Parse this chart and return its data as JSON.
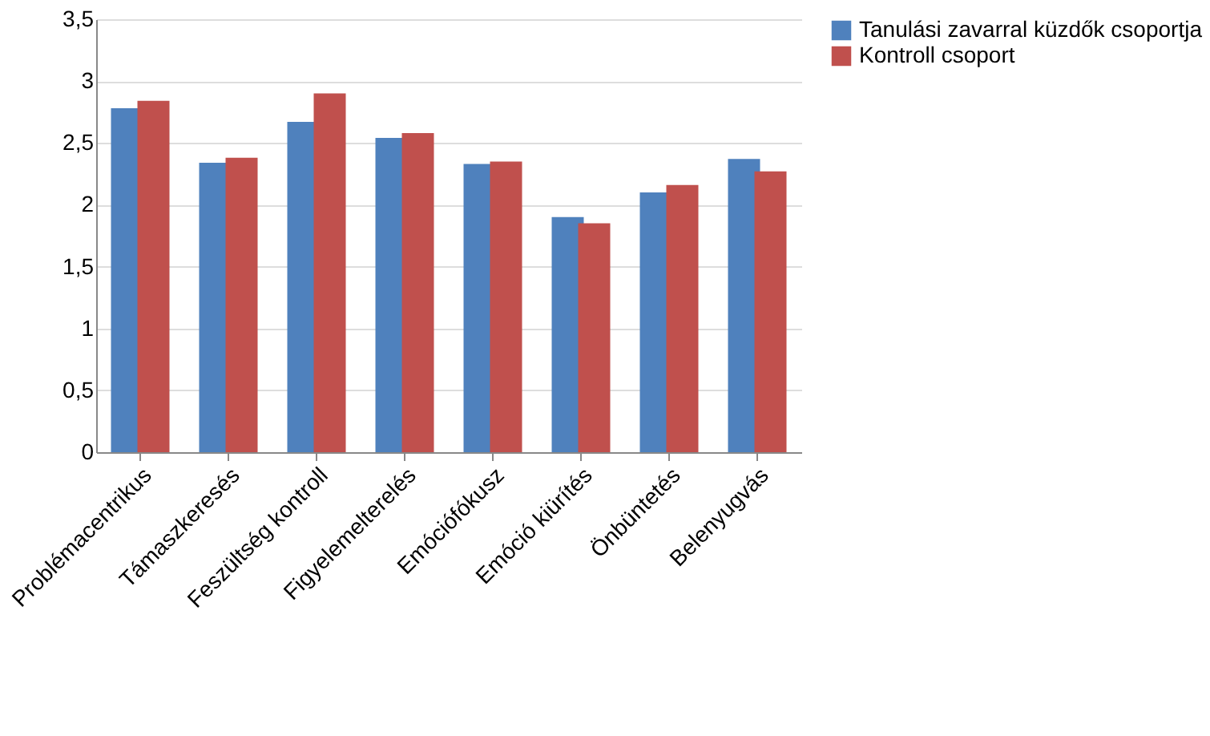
{
  "chart_data": {
    "type": "bar",
    "categories": [
      "Problémacentrikus",
      "Támaszkeresés",
      "Feszültség kontroll",
      "Figyelemelterelés",
      "Emóciófókusz",
      "Emóció kiürítés",
      "Önbüntetés",
      "Belenyugvás"
    ],
    "series": [
      {
        "name": "Tanulási zavarral küzdők csoportja",
        "color": "#4f81bd",
        "values": [
          2.78,
          2.34,
          2.67,
          2.54,
          2.33,
          1.9,
          2.1,
          2.37
        ]
      },
      {
        "name": "Kontroll csoport",
        "color": "#c0504d",
        "values": [
          2.84,
          2.38,
          2.9,
          2.58,
          2.35,
          1.85,
          2.16,
          2.27
        ]
      }
    ],
    "ylim": [
      0,
      3.5
    ],
    "yticks": [
      0,
      {
        "value": 0.5,
        "label": "0,5"
      },
      1,
      {
        "value": 1.5,
        "label": "1,5"
      },
      2,
      {
        "value": 2.5,
        "label": "2,5"
      },
      3,
      {
        "value": 3.5,
        "label": "3,5"
      }
    ],
    "grid": "y",
    "legend": "right"
  }
}
